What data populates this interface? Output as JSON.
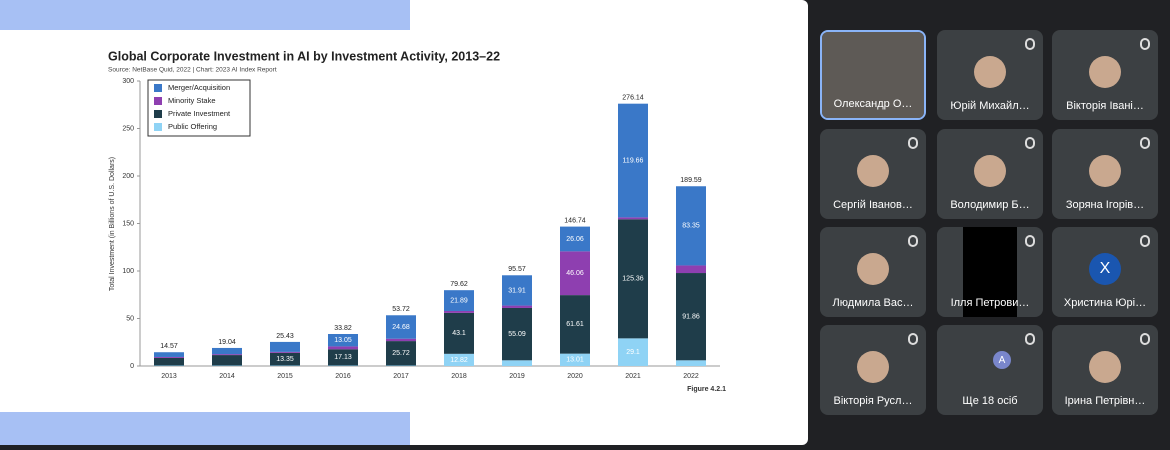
{
  "chart_data": {
    "type": "stacked_bar",
    "title": "Global Corporate Investment in AI by Investment Activity, 2013–22",
    "subtitle": "Source: NetBase Quid, 2022 | Chart: 2023 AI Index Report",
    "y_label": "Total Investment (in Billions of U.S. Dollars)",
    "annotation": "Figure 4.2.1",
    "categories": [
      "2013",
      "2014",
      "2015",
      "2016",
      "2017",
      "2018",
      "2019",
      "2020",
      "2021",
      "2022"
    ],
    "totals": [
      14.57,
      19.04,
      25.43,
      33.82,
      53.72,
      79.62,
      95.57,
      146.74,
      276.14,
      189.59
    ],
    "series": [
      {
        "name": "Public Offering",
        "color": "#8fd3f5",
        "values": [
          0.5,
          0.5,
          0.5,
          0.5,
          0.5,
          12.82,
          6,
          13.01,
          29.1,
          6
        ],
        "value_labels": [
          null,
          null,
          null,
          null,
          null,
          "12.82",
          null,
          "13.01",
          "29.1",
          null
        ]
      },
      {
        "name": "Private Investment",
        "color": "#1f3d4a",
        "values": [
          8,
          11,
          13.35,
          17.13,
          25.72,
          43.1,
          55.09,
          61.61,
          125.36,
          91.86
        ],
        "value_labels": [
          null,
          null,
          "13.35",
          "17.13",
          "25.72",
          "43.1",
          "55.09",
          "61.61",
          "125.36",
          "91.86"
        ]
      },
      {
        "name": "Minority Stake",
        "color": "#8e3fb0",
        "values": [
          1,
          1,
          1,
          3,
          2.5,
          2,
          2.5,
          46.06,
          2,
          8
        ],
        "value_labels": [
          null,
          null,
          null,
          null,
          null,
          null,
          null,
          "46.06",
          null,
          null
        ]
      },
      {
        "name": "Merger/Acquisition",
        "color": "#3a78c8",
        "values": [
          5,
          6.5,
          10.5,
          13.05,
          24.68,
          21.89,
          31.91,
          26.06,
          119.66,
          83.35
        ],
        "value_labels": [
          null,
          null,
          null,
          "13.05",
          "24.68",
          "21.89",
          "31.91",
          "26.06",
          "119.66",
          "83.35"
        ]
      }
    ],
    "legend_order": [
      3,
      2,
      1,
      0
    ],
    "ylim": [
      0,
      300
    ],
    "yticks": [
      0,
      50,
      100,
      150,
      200,
      250,
      300
    ]
  },
  "participants": [
    {
      "name": "Олександр О…",
      "speaking": true,
      "video": true
    },
    {
      "name": "Юрій Михайл…"
    },
    {
      "name": "Вікторія Івані…"
    },
    {
      "name": "Сергій Іванов…"
    },
    {
      "name": "Володимир Б…"
    },
    {
      "name": "Зоряна Ігорів…"
    },
    {
      "name": "Людмила Вас…"
    },
    {
      "name": "Ілля Петрови…",
      "video": true
    },
    {
      "name": "Христина Юрі…",
      "initial": "X"
    },
    {
      "name": "Вікторія Русл…"
    },
    {
      "name": "Ще 18 осіб",
      "initial": "A",
      "more": true
    },
    {
      "name": "Ірина Петрівн…"
    }
  ]
}
